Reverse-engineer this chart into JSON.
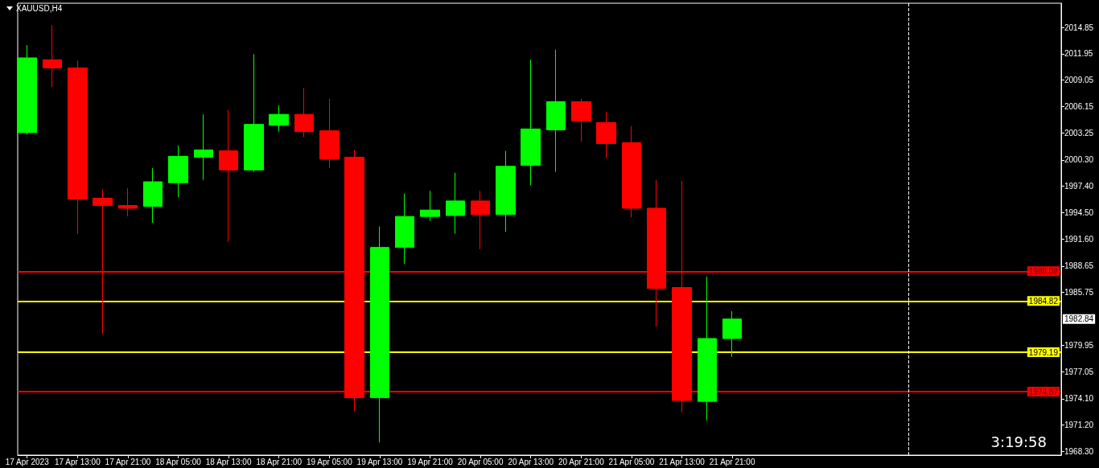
{
  "chart_data": {
    "type": "candlestick",
    "title": "XAUUSD,H4",
    "x": [
      "2023-04-17T05:00",
      "2023-04-17T09:00",
      "2023-04-17T13:00",
      "2023-04-17T17:00",
      "2023-04-17T21:00",
      "2023-04-18T01:00",
      "2023-04-18T05:00",
      "2023-04-18T09:00",
      "2023-04-18T13:00",
      "2023-04-18T17:00",
      "2023-04-18T21:00",
      "2023-04-19T01:00",
      "2023-04-19T05:00",
      "2023-04-19T09:00",
      "2023-04-19T13:00",
      "2023-04-19T17:00",
      "2023-04-19T21:00",
      "2023-04-20T01:00",
      "2023-04-20T05:00",
      "2023-04-20T09:00",
      "2023-04-20T13:00",
      "2023-04-20T17:00",
      "2023-04-20T21:00",
      "2023-04-21T01:00",
      "2023-04-21T05:00",
      "2023-04-21T09:00",
      "2023-04-21T13:00",
      "2023-04-21T17:00",
      "2023-04-21T21:00"
    ],
    "ohlc": [
      [
        2003.3,
        2012.9,
        2003.1,
        2011.5
      ],
      [
        2011.3,
        2015.1,
        2008.3,
        2010.4
      ],
      [
        2010.4,
        2011.2,
        1992.2,
        1996.0
      ],
      [
        1996.1,
        1997.1,
        1981.2,
        1995.3
      ],
      [
        1995.3,
        1997.2,
        1994.1,
        1995.0
      ],
      [
        1995.2,
        1999.4,
        1993.4,
        1997.9
      ],
      [
        1997.8,
        2001.9,
        1996.2,
        2000.7
      ],
      [
        2000.6,
        2005.3,
        1998.1,
        2001.4
      ],
      [
        2001.3,
        2005.8,
        1991.3,
        1999.2
      ],
      [
        1999.2,
        2011.9,
        1999.0,
        2004.2
      ],
      [
        2004.1,
        2006.3,
        2003.4,
        2005.3
      ],
      [
        2005.3,
        2008.2,
        2002.8,
        2003.4
      ],
      [
        2003.5,
        2007.0,
        1999.4,
        2000.4
      ],
      [
        2000.6,
        2001.4,
        1972.7,
        1974.2
      ],
      [
        1974.2,
        1993.0,
        1969.3,
        1990.7
      ],
      [
        1990.7,
        1996.6,
        1988.9,
        1994.1
      ],
      [
        1994.1,
        1996.9,
        1993.6,
        1994.8
      ],
      [
        1994.2,
        1998.9,
        1992.2,
        1995.8
      ],
      [
        1995.8,
        1996.9,
        1990.5,
        1994.3
      ],
      [
        1994.3,
        2001.3,
        1992.4,
        1999.6
      ],
      [
        1999.7,
        2011.3,
        1997.5,
        2003.7
      ],
      [
        2003.6,
        2012.4,
        1999.0,
        2006.7
      ],
      [
        2006.7,
        2007.0,
        2002.3,
        2004.6
      ],
      [
        2004.4,
        2005.6,
        2000.5,
        2002.1
      ],
      [
        2002.2,
        2004.0,
        1994.0,
        1995.0
      ],
      [
        1995.0,
        1998.1,
        1982.0,
        1986.2
      ],
      [
        1986.3,
        1998.0,
        1972.6,
        1973.9
      ],
      [
        1973.8,
        1987.5,
        1971.7,
        1980.7
      ],
      [
        1980.7,
        1983.7,
        1978.7,
        1982.84
      ]
    ],
    "colors": [
      "#00ff00",
      "#ff0000",
      "#ff0000",
      "#ff0000",
      "#ff0000",
      "#00ff00",
      "#00ff00",
      "#00ff00",
      "#ff0000",
      "#00ff00",
      "#00ff00",
      "#ff0000",
      "#ff0000",
      "#ff0000",
      "#00ff00",
      "#00ff00",
      "#00ff00",
      "#00ff00",
      "#ff0000",
      "#00ff00",
      "#00ff00",
      "#00ff00",
      "#ff0000",
      "#ff0000",
      "#ff0000",
      "#ff0000",
      "#ff0000",
      "#00ff00",
      "#00ff00"
    ],
    "xlim": [
      "2023-04-17T03:30",
      "2023-04-24T01:15"
    ],
    "xticks": [
      {
        "value": "2023-04-17T05:00",
        "label": "17 Apr 2023"
      },
      {
        "value": "2023-04-17T13:00",
        "label": "17 Apr 13:00"
      },
      {
        "value": "2023-04-17T21:00",
        "label": "17 Apr 21:00"
      },
      {
        "value": "2023-04-18T05:00",
        "label": "18 Apr 05:00"
      },
      {
        "value": "2023-04-18T13:00",
        "label": "18 Apr 13:00"
      },
      {
        "value": "2023-04-18T21:00",
        "label": "18 Apr 21:00"
      },
      {
        "value": "2023-04-19T05:00",
        "label": "19 Apr 05:00"
      },
      {
        "value": "2023-04-19T13:00",
        "label": "19 Apr 13:00"
      },
      {
        "value": "2023-04-19T21:00",
        "label": "19 Apr 21:00"
      },
      {
        "value": "2023-04-20T05:00",
        "label": "20 Apr 05:00"
      },
      {
        "value": "2023-04-20T13:00",
        "label": "20 Apr 13:00"
      },
      {
        "value": "2023-04-20T21:00",
        "label": "20 Apr 21:00"
      },
      {
        "value": "2023-04-21T05:00",
        "label": "21 Apr 05:00"
      },
      {
        "value": "2023-04-21T13:00",
        "label": "21 Apr 13:00"
      },
      {
        "value": "2023-04-21T21:00",
        "label": "21 Apr 21:00"
      }
    ],
    "ylim": [
      1967.9,
      2017.5
    ],
    "yticks": [
      2014.85,
      2011.95,
      2009.05,
      2006.15,
      2003.25,
      {
        "value": 2000.3,
        "label": "2000.30"
      },
      {
        "value": 1997.4,
        "label": "1997.40"
      },
      {
        "value": 1994.5,
        "label": "1994.50"
      },
      {
        "value": 1991.6,
        "label": "1991.60"
      },
      1988.65,
      1985.75,
      1979.95,
      1977.05,
      {
        "value": 1974.1,
        "label": "1974.10"
      },
      {
        "value": 1971.2,
        "label": "1971.20"
      },
      {
        "value": 1968.3,
        "label": "1968.30"
      }
    ],
    "ref_lines": [
      {
        "axis": "y",
        "value": 1988.08,
        "label": "1988.08",
        "color": "#ff0000"
      },
      {
        "axis": "y",
        "value": 1984.82,
        "label": "1984.82",
        "color": "#ffff00"
      },
      {
        "axis": "y",
        "value": 1979.19,
        "label": "1979.19",
        "color": "#ffff00"
      },
      {
        "axis": "y",
        "value": 1974.87,
        "label": "1974.87",
        "color": "#ff0000"
      },
      {
        "axis": "x",
        "value": "2023-04-23T01:00",
        "color": "#ffffff",
        "line_style": "dashed"
      }
    ],
    "annotations": [
      "1982.84",
      "3:19:58"
    ],
    "grid": false
  }
}
